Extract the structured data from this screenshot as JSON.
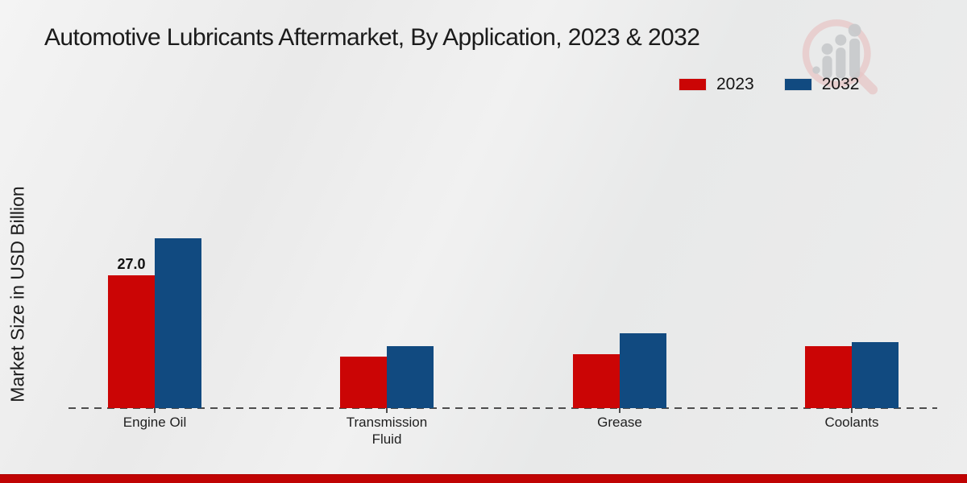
{
  "chart_data": {
    "type": "bar",
    "title": "Automotive Lubricants Aftermarket, By Application, 2023 & 2032",
    "ylabel": "Market Size in USD Billion",
    "xlabel": "",
    "units": "USD Billion",
    "categories": [
      "Engine Oil",
      "Transmission Fluid",
      "Grease",
      "Coolants"
    ],
    "series": [
      {
        "name": "2023",
        "color": "#cb0505",
        "values": [
          27.0,
          10.5,
          11.0,
          12.6
        ]
      },
      {
        "name": "2032",
        "color": "#114a80",
        "values": [
          34.5,
          12.6,
          15.2,
          13.5
        ]
      }
    ],
    "bar_label": {
      "series": "2023",
      "category": "Engine Oil",
      "text": "27.0"
    },
    "legend_position": "top-right",
    "grid": false,
    "baseline_style": "dashed"
  },
  "legend": {
    "items": [
      {
        "label": "2023",
        "color": "#cb0505"
      },
      {
        "label": "2032",
        "color": "#114a80"
      }
    ]
  },
  "watermark": {
    "icon": "magnifier-bar-chart-logo"
  },
  "footer": {
    "accent_color": "#c00303"
  }
}
